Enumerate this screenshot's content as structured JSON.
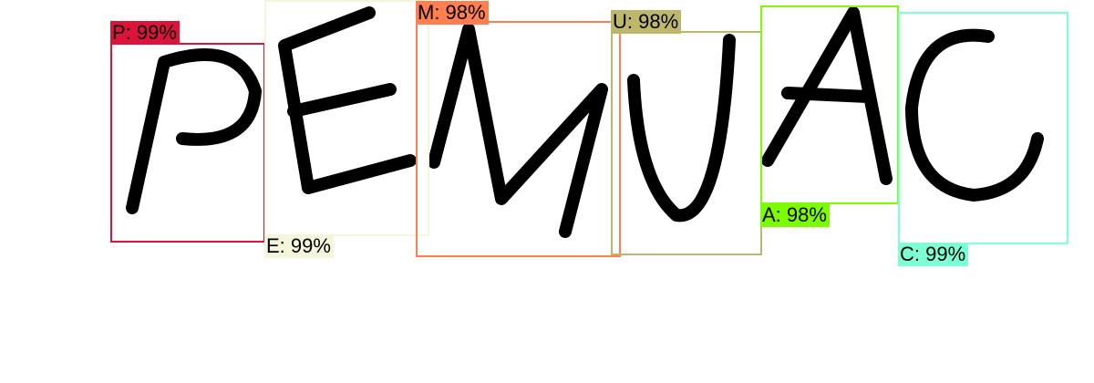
{
  "detections": [
    {
      "letter": "P",
      "label": "P: 99%",
      "color": "#dc143c"
    },
    {
      "letter": "E",
      "label": "E: 99%",
      "color": "#f5f5dc"
    },
    {
      "letter": "M",
      "label": "M: 98%",
      "color": "#ff7f50"
    },
    {
      "letter": "U",
      "label": "U: 98%",
      "color": "#bdb76b"
    },
    {
      "letter": "A",
      "label": "A: 98%",
      "color": "#7cfc00"
    },
    {
      "letter": "C",
      "label": "C: 99%",
      "color": "#7fffd4"
    }
  ]
}
